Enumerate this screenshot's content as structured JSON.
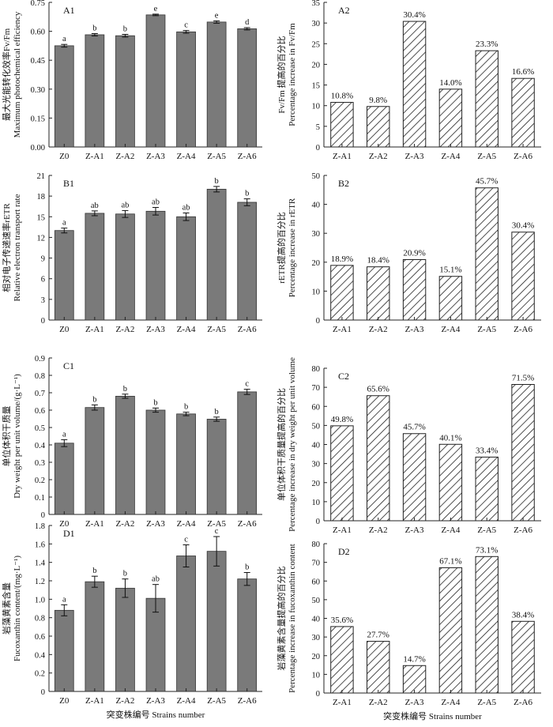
{
  "chart_data": [
    {
      "id": "A1",
      "type": "bar",
      "panel_label": "A1",
      "categories": [
        "Z0",
        "Z-A1",
        "Z-A2",
        "Z-A3",
        "Z-A4",
        "Z-A5",
        "Z-A6"
      ],
      "values": [
        0.525,
        0.582,
        0.577,
        0.685,
        0.597,
        0.648,
        0.613
      ],
      "errors": [
        0.007,
        0.006,
        0.007,
        0.004,
        0.007,
        0.006,
        0.006
      ],
      "letters": [
        "a",
        "b",
        "b",
        "e",
        "c",
        "e",
        "d"
      ],
      "ylim": [
        0,
        0.75
      ],
      "yticks": [
        "0.00",
        "0.15",
        "0.30",
        "0.45",
        "0.60",
        "0.75"
      ],
      "ytick_values": [
        0,
        0.15,
        0.3,
        0.45,
        0.6,
        0.75
      ],
      "ylabel_cn": "最大光能转化效率Fv/Fm",
      "ylabel_en": "Maximum photochemical efficiency",
      "xlabel": ""
    },
    {
      "id": "A2",
      "type": "bar",
      "panel_label": "A2",
      "categories": [
        "Z-A1",
        "Z-A2",
        "Z-A3",
        "Z-A4",
        "Z-A5",
        "Z-A6"
      ],
      "values": [
        10.8,
        9.8,
        30.4,
        14.0,
        23.3,
        16.6
      ],
      "value_labels": [
        "10.8%",
        "9.8%",
        "30.4%",
        "14.0%",
        "23.3%",
        "16.6%"
      ],
      "ylim": [
        0,
        35
      ],
      "yticks": [
        "0",
        "5",
        "10",
        "15",
        "20",
        "25",
        "30",
        "35"
      ],
      "ytick_values": [
        0,
        5,
        10,
        15,
        20,
        25,
        30,
        35
      ],
      "ylabel_cn": "Fv/Fm 提高的百分比",
      "ylabel_en": "Percentage increase in Fv/Fm",
      "xlabel": ""
    },
    {
      "id": "B1",
      "type": "bar",
      "panel_label": "B1",
      "categories": [
        "Z0",
        "Z-A1",
        "Z-A2",
        "Z-A3",
        "Z-A4",
        "Z-A5",
        "Z-A6"
      ],
      "values": [
        13.0,
        15.5,
        15.4,
        15.8,
        15.0,
        19.0,
        17.1
      ],
      "errors": [
        0.35,
        0.35,
        0.5,
        0.55,
        0.55,
        0.4,
        0.5
      ],
      "letters": [
        "a",
        "ab",
        "ab",
        "ab",
        "ab",
        "b",
        "b"
      ],
      "ylim": [
        0,
        21
      ],
      "yticks": [
        "0",
        "3",
        "6",
        "9",
        "12",
        "15",
        "18",
        "21"
      ],
      "ytick_values": [
        0,
        3,
        6,
        9,
        12,
        15,
        18,
        21
      ],
      "ylabel_cn": "相对电子传递速率rETR",
      "ylabel_en": "Relative electron transport rate",
      "xlabel": ""
    },
    {
      "id": "B2",
      "type": "bar",
      "panel_label": "B2",
      "categories": [
        "Z-A1",
        "Z-A2",
        "Z-A3",
        "Z-A4",
        "Z-A5",
        "Z-A6"
      ],
      "values": [
        18.9,
        18.4,
        20.9,
        15.1,
        45.7,
        30.4
      ],
      "value_labels": [
        "18.9%",
        "18.4%",
        "20.9%",
        "15.1%",
        "45.7%",
        "30.4%"
      ],
      "ylim": [
        0,
        50
      ],
      "yticks": [
        "0",
        "10",
        "20",
        "30",
        "40",
        "50"
      ],
      "ytick_values": [
        0,
        10,
        20,
        30,
        40,
        50
      ],
      "ylabel_cn": "rETR提高的百分比",
      "ylabel_en": "Percentage increase in rETR",
      "xlabel": ""
    },
    {
      "id": "C1",
      "type": "bar",
      "panel_label": "C1",
      "categories": [
        "Z0",
        "Z-A1",
        "Z-A2",
        "Z-A3",
        "Z-A4",
        "Z-A5",
        "Z-A6"
      ],
      "values": [
        0.41,
        0.615,
        0.68,
        0.6,
        0.578,
        0.548,
        0.705
      ],
      "errors": [
        0.02,
        0.015,
        0.012,
        0.012,
        0.01,
        0.012,
        0.015
      ],
      "letters": [
        "a",
        "b",
        "b",
        "b",
        "b",
        "b",
        "c"
      ],
      "ylim": [
        0,
        0.9
      ],
      "yticks": [
        "0",
        "0.1",
        "0.2",
        "0.3",
        "0.4",
        "0.5",
        "0.6",
        "0.7",
        "0.8",
        "0.9"
      ],
      "ytick_values": [
        0,
        0.1,
        0.2,
        0.3,
        0.4,
        0.5,
        0.6,
        0.7,
        0.8,
        0.9
      ],
      "ylabel_cn": "单位体积干质量",
      "ylabel_en": "Dry weight per unit volume/(g·L⁻¹)",
      "xlabel": ""
    },
    {
      "id": "C2",
      "type": "bar",
      "panel_label": "C2",
      "categories": [
        "Z-A1",
        "Z-A2",
        "Z-A3",
        "Z-A4",
        "Z-A5",
        "Z-A6"
      ],
      "values": [
        49.8,
        65.6,
        45.7,
        40.1,
        33.4,
        71.5
      ],
      "value_labels": [
        "49.8%",
        "65.6%",
        "45.7%",
        "40.1%",
        "33.4%",
        "71.5%"
      ],
      "ylim": [
        0,
        80
      ],
      "yticks": [
        "0",
        "10",
        "20",
        "30",
        "40",
        "50",
        "60",
        "70",
        "80"
      ],
      "ytick_values": [
        0,
        10,
        20,
        30,
        40,
        50,
        60,
        70,
        80
      ],
      "ylabel_cn": "单位体积干质量提高的百分比",
      "ylabel_en": "Percentage increase in dry weight per unit volume",
      "xlabel": ""
    },
    {
      "id": "D1",
      "type": "bar",
      "panel_label": "D1",
      "categories": [
        "Z0",
        "Z-A1",
        "Z-A2",
        "Z-A3",
        "Z-A4",
        "Z-A5",
        "Z-A6"
      ],
      "values": [
        0.88,
        1.19,
        1.12,
        1.01,
        1.47,
        1.52,
        1.22
      ],
      "errors": [
        0.06,
        0.06,
        0.1,
        0.15,
        0.12,
        0.16,
        0.07
      ],
      "letters": [
        "a",
        "b",
        "b",
        "ab",
        "c",
        "c",
        "b"
      ],
      "ylim": [
        0,
        1.8
      ],
      "yticks": [
        "0",
        "0.2",
        "0.4",
        "0.6",
        "0.8",
        "1.0",
        "1.2",
        "1.4",
        "1.6",
        "1.8"
      ],
      "ytick_values": [
        0,
        0.2,
        0.4,
        0.6,
        0.8,
        1.0,
        1.2,
        1.4,
        1.6,
        1.8
      ],
      "ylabel_cn": "岩藻黄素含量",
      "ylabel_en": "Fucoxanthin content/(mg·L⁻¹)",
      "xlabel": "突变株编号 Strains  number"
    },
    {
      "id": "D2",
      "type": "bar",
      "panel_label": "D2",
      "categories": [
        "Z-A1",
        "Z-A2",
        "Z-A3",
        "Z-A4",
        "Z-A5",
        "Z-A6"
      ],
      "values": [
        35.6,
        27.7,
        14.7,
        67.1,
        73.1,
        38.4
      ],
      "value_labels": [
        "35.6%",
        "27.7%",
        "14.7%",
        "67.1%",
        "73.1%",
        "38.4%"
      ],
      "ylim": [
        0,
        80
      ],
      "yticks": [
        "0",
        "10",
        "20",
        "30",
        "40",
        "50",
        "60",
        "70",
        "80"
      ],
      "ytick_values": [
        0,
        10,
        20,
        30,
        40,
        50,
        60,
        70,
        80
      ],
      "ylabel_cn": "岩藻黄素含量提高的百分比",
      "ylabel_en": "Percentage increase in fucoxanthin content",
      "xlabel": "突变株编号 Strains  number"
    }
  ]
}
